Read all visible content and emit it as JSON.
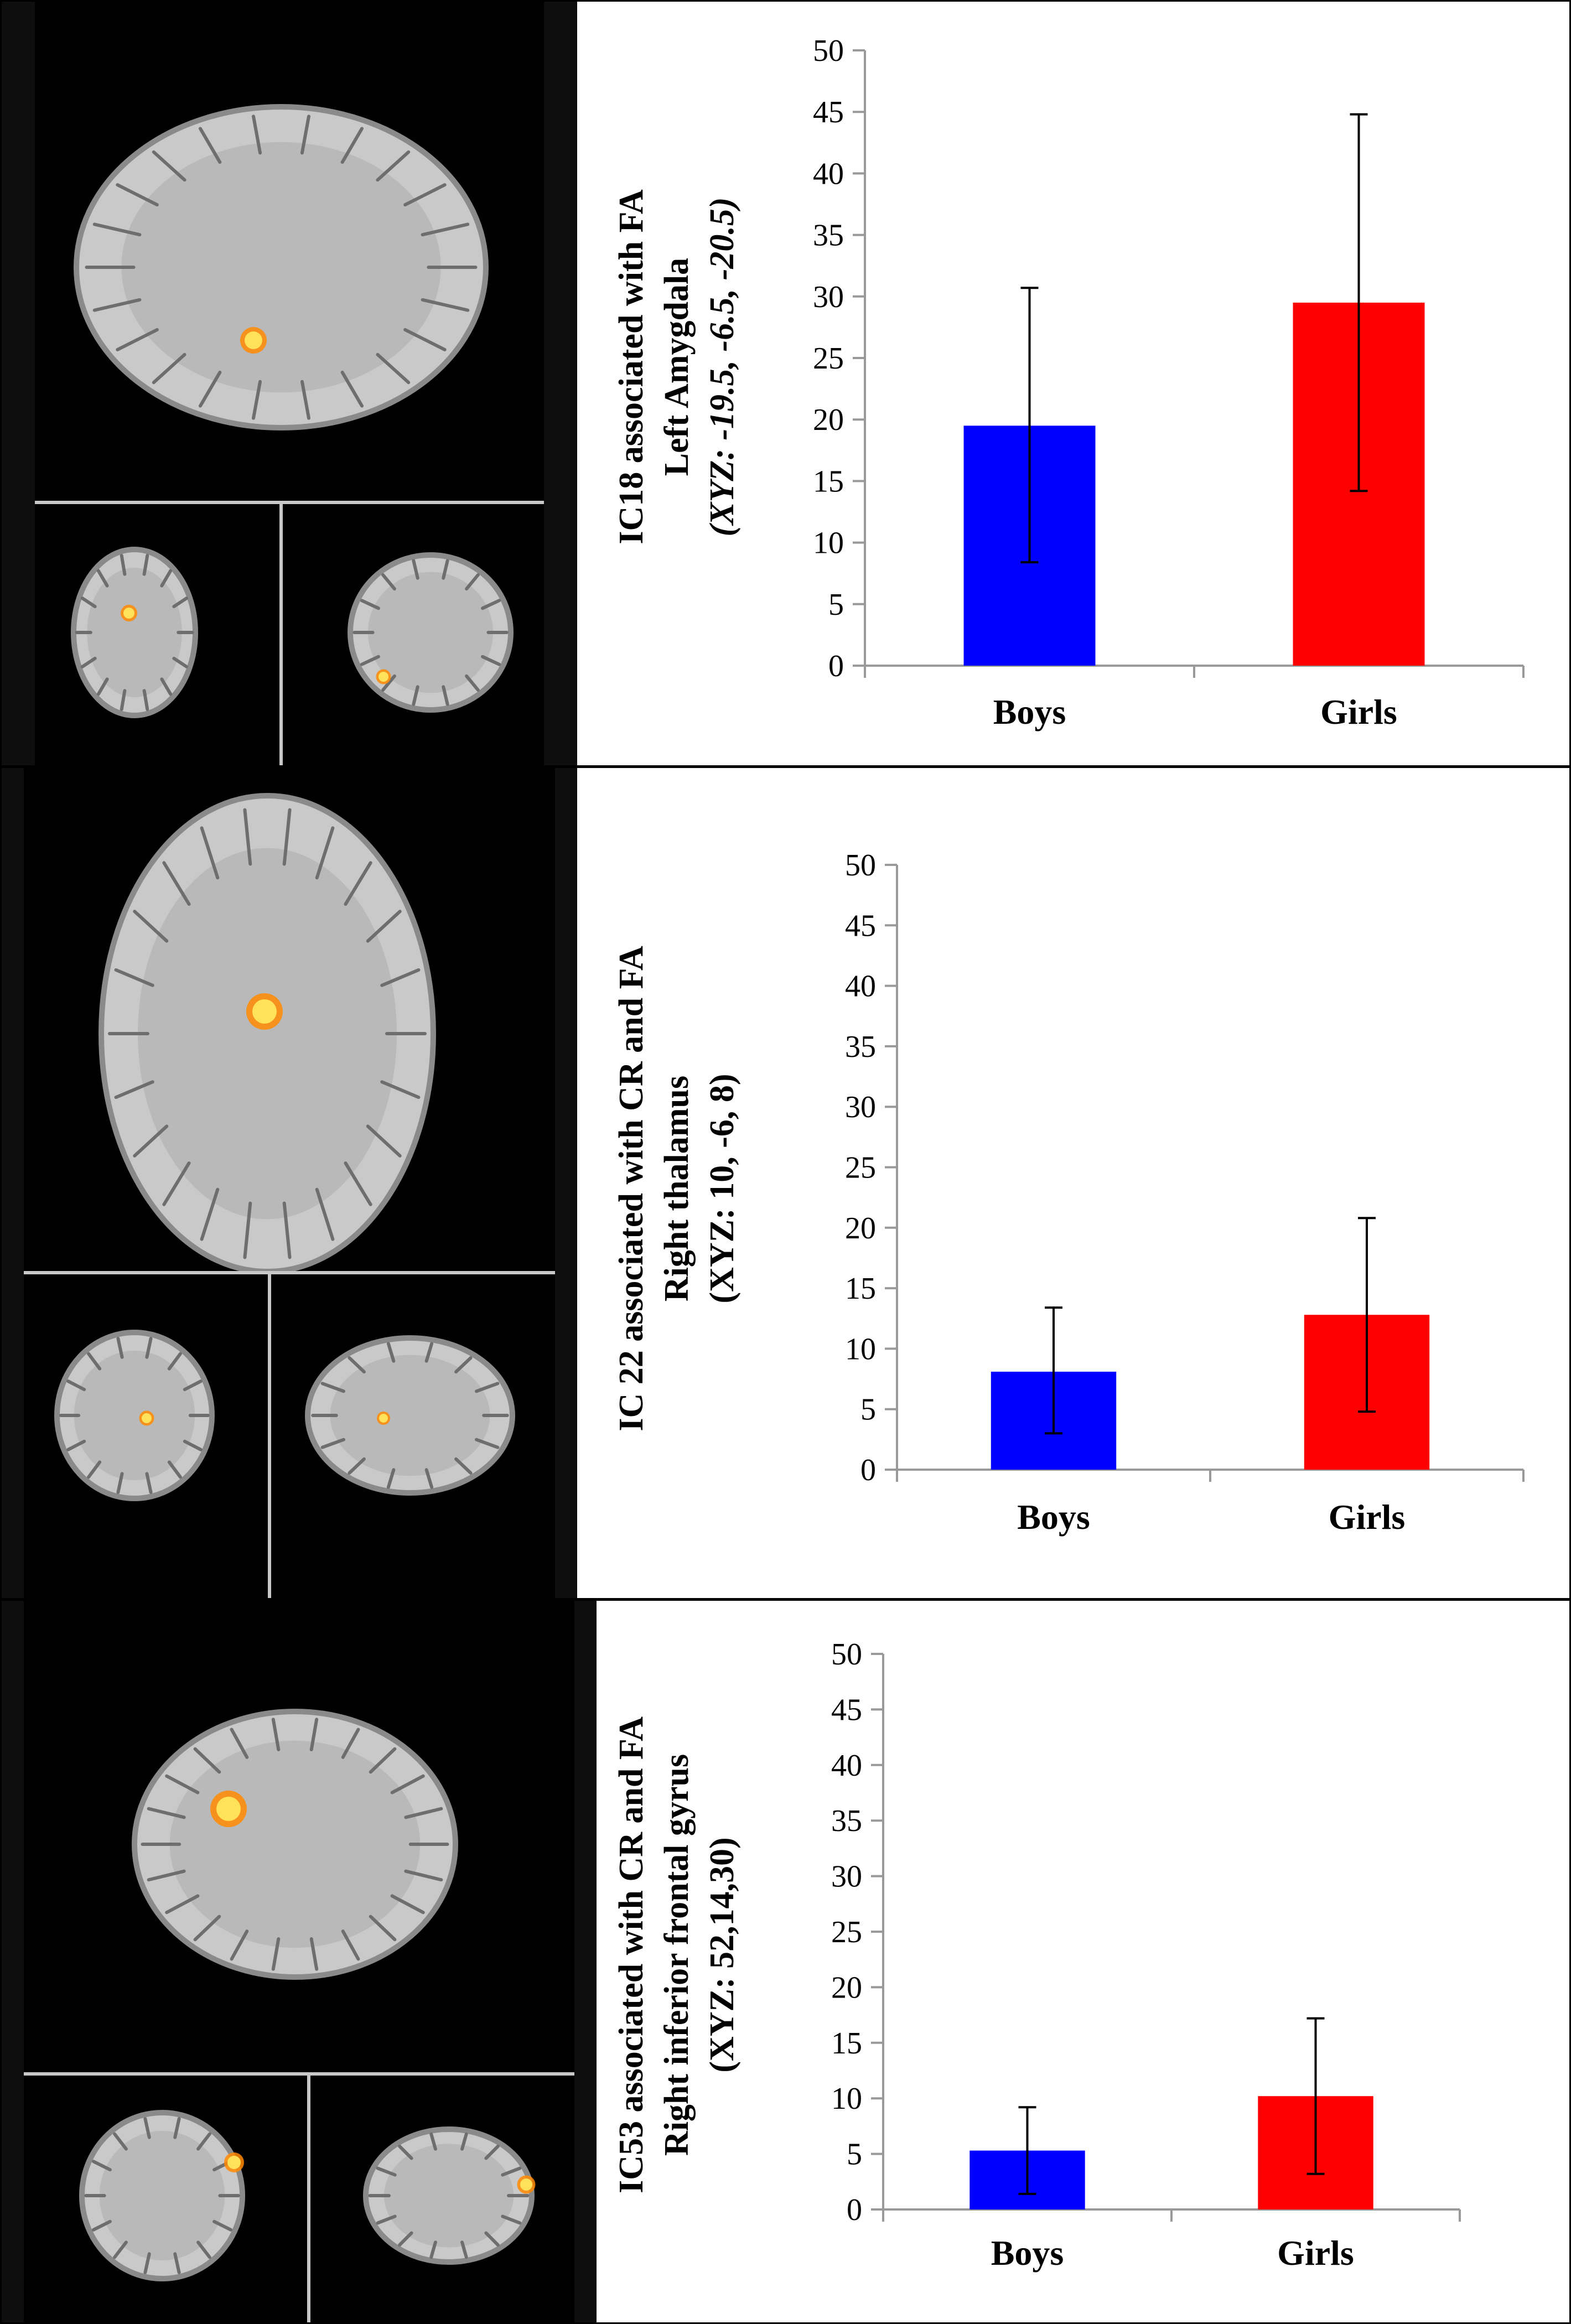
{
  "colors": {
    "boys": "#0000ff",
    "girls": "#ff0000",
    "axis": "#999999"
  },
  "panels": [
    {
      "image_view": "sagittal-axial-coronal",
      "chart_data": {
        "type": "bar",
        "categories": [
          "Boys",
          "Girls"
        ],
        "values": [
          19.5,
          29.5
        ],
        "error_upper": [
          30.7,
          44.8
        ],
        "error_lower": [
          8.4,
          14.2
        ],
        "ylim": [
          0,
          50
        ],
        "yticks": [
          "0",
          "5",
          "10",
          "15",
          "20",
          "25",
          "30",
          "35",
          "40",
          "45",
          "50"
        ],
        "ylabel_lines": [
          "IC18 associated with FA",
          "Left Amygdala",
          "(XYZ: -19.5, -6.5, -20.5)"
        ],
        "ylabel_italic_line": 2,
        "xlabel": "",
        "grid": false,
        "legend": "none"
      }
    },
    {
      "image_view": "axial-coronal-sagittal",
      "chart_data": {
        "type": "bar",
        "categories": [
          "Boys",
          "Girls"
        ],
        "values": [
          8.1,
          12.8
        ],
        "error_upper": [
          13.4,
          20.8
        ],
        "error_lower": [
          3.0,
          4.8
        ],
        "ylim": [
          0,
          50
        ],
        "yticks": [
          "0",
          "5",
          "10",
          "15",
          "20",
          "25",
          "30",
          "35",
          "40",
          "45",
          "50"
        ],
        "ylabel_lines": [
          "IC 22 associated with CR and FA",
          "Right thalamus",
          "(XYZ: 10, -6, 8)"
        ],
        "ylabel_italic_line": -1,
        "xlabel": "",
        "grid": false,
        "legend": "none"
      }
    },
    {
      "image_view": "sagittal-axial-coronal",
      "chart_data": {
        "type": "bar",
        "categories": [
          "Boys",
          "Girls"
        ],
        "values": [
          5.3,
          10.2
        ],
        "error_upper": [
          9.2,
          17.2
        ],
        "error_lower": [
          1.4,
          3.2
        ],
        "ylim": [
          0,
          50
        ],
        "yticks": [
          "0",
          "5",
          "10",
          "15",
          "20",
          "25",
          "30",
          "35",
          "40",
          "45",
          "50"
        ],
        "ylabel_lines": [
          "IC53 associated with CR and FA",
          "Right inferior frontal gyrus",
          "(XYZ: 52,14,30)"
        ],
        "ylabel_italic_line": -1,
        "xlabel": "",
        "grid": false,
        "legend": "none"
      }
    }
  ]
}
